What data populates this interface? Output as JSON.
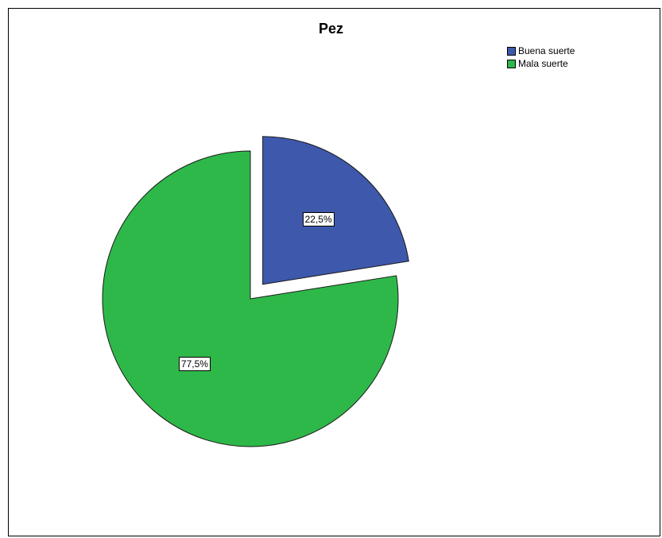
{
  "chart_data": {
    "type": "pie",
    "title": "Pez",
    "legend_position": "top-right",
    "slices": [
      {
        "label": "Buena suerte",
        "value": 22.5,
        "value_label": "22,5%",
        "color": "#3E58AC",
        "exploded": true
      },
      {
        "label": "Mala suerte",
        "value": 77.5,
        "value_label": "77,5%",
        "color": "#2EB849",
        "exploded": false
      }
    ]
  }
}
